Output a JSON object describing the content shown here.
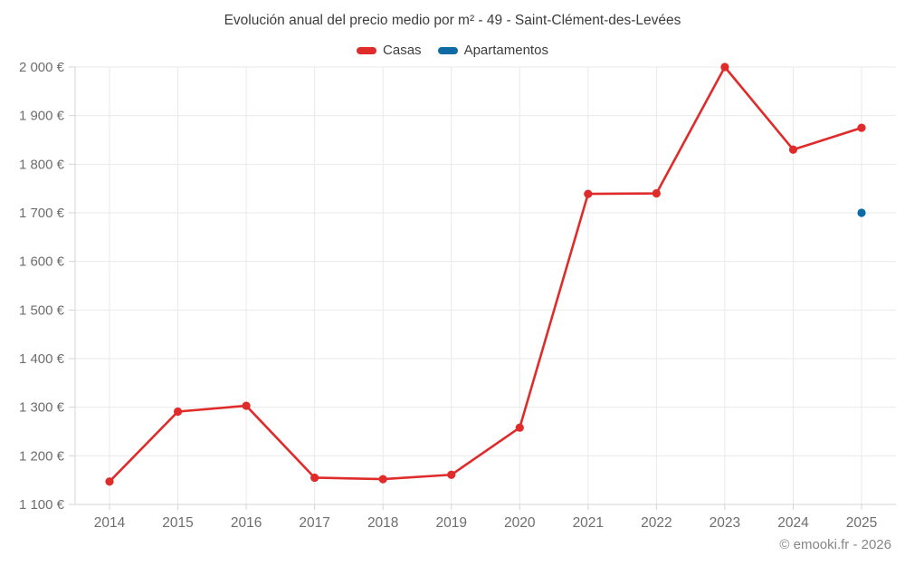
{
  "title": "Evolución anual del precio medio por m² - 49 - Saint-Clément-des-Levées",
  "legend": [
    {
      "label": "Casas",
      "color": "#e02b2b"
    },
    {
      "label": "Apartamentos",
      "color": "#0f6ba3"
    }
  ],
  "watermark": "© emooki.fr - 2026",
  "colors": {
    "grid": "#e9e9e9",
    "axis": "#d4d4d4",
    "tick_text": "#6e6e6e",
    "title_text": "#3d3d3d"
  },
  "chart_data": {
    "type": "line",
    "title": "Evolución anual del precio medio por m² - 49 - Saint-Clément-des-Levées",
    "x": [
      "2014",
      "2015",
      "2016",
      "2017",
      "2018",
      "2019",
      "2020",
      "2021",
      "2022",
      "2023",
      "2024",
      "2025"
    ],
    "series": [
      {
        "name": "Casas",
        "color": "#e02b2b",
        "values": [
          1147,
          1291,
          1303,
          1155,
          1152,
          1161,
          1258,
          1739,
          1740,
          2000,
          1830,
          1875
        ]
      },
      {
        "name": "Apartamentos",
        "color": "#0f6ba3",
        "values": [
          null,
          null,
          null,
          null,
          null,
          null,
          null,
          null,
          null,
          null,
          null,
          1700
        ]
      }
    ],
    "xlabel": "",
    "ylabel": "",
    "ylim": [
      1100,
      2000
    ],
    "y_tick_step": 100,
    "y_tick_labels": [
      "1 100 €",
      "1 200 €",
      "1 300 €",
      "1 400 €",
      "1 500 €",
      "1 600 €",
      "1 700 €",
      "1 800 €",
      "1 900 €",
      "2 000 €"
    ],
    "grid": true,
    "legend_position": "top"
  }
}
